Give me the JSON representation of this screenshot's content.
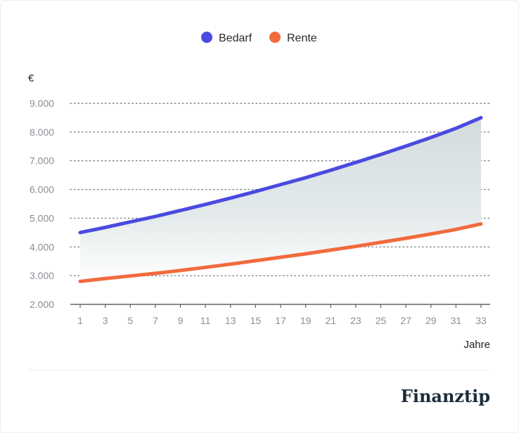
{
  "chart_data": {
    "type": "line",
    "legend": [
      {
        "name": "Bedarf",
        "color": "#4a4ae0"
      },
      {
        "name": "Rente",
        "color": "#f26a3d"
      }
    ],
    "legend_position": "top-center",
    "y_unit": "€",
    "xlabel": "Jahre",
    "x_ticks": [
      "1",
      "3",
      "5",
      "7",
      "9",
      "11",
      "13",
      "15",
      "17",
      "19",
      "21",
      "23",
      "25",
      "27",
      "29",
      "31",
      "33"
    ],
    "y_ticks": [
      "2.000",
      "3.000",
      "4.000",
      "5.000",
      "6.000",
      "7.000",
      "8.000",
      "9.000"
    ],
    "ylim": [
      2000,
      9000
    ],
    "xlim": [
      1,
      33
    ],
    "grid": "horizontal dotted",
    "shaded_area": "between Bedarf and Rente",
    "series": [
      {
        "name": "Bedarf",
        "color": "#4a4ae0",
        "x": [
          1,
          3,
          5,
          7,
          9,
          11,
          13,
          15,
          17,
          19,
          21,
          23,
          25,
          27,
          29,
          31,
          33
        ],
        "values": [
          4500,
          4680,
          4870,
          5060,
          5270,
          5480,
          5700,
          5930,
          6170,
          6410,
          6670,
          6940,
          7220,
          7510,
          7810,
          8130,
          8500
        ]
      },
      {
        "name": "Rente",
        "color": "#f26a3d",
        "x": [
          1,
          3,
          5,
          7,
          9,
          11,
          13,
          15,
          17,
          19,
          21,
          23,
          25,
          27,
          29,
          31,
          33
        ],
        "values": [
          2800,
          2900,
          2990,
          3080,
          3180,
          3290,
          3400,
          3520,
          3640,
          3760,
          3890,
          4020,
          4160,
          4300,
          4450,
          4610,
          4800
        ]
      }
    ]
  },
  "brand": {
    "name": "Finanztip"
  }
}
